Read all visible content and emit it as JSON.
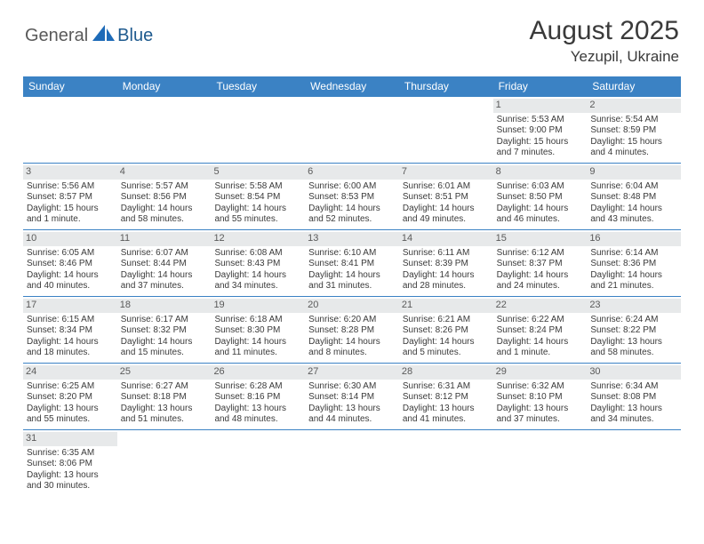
{
  "logo": {
    "general": "General",
    "blue": "Blue",
    "shape_color": "#1e6bb8"
  },
  "title": {
    "month": "August 2025",
    "location": "Yezupil, Ukraine"
  },
  "colors": {
    "header_bg": "#3b82c4",
    "daynum_bg": "#e7e9ea",
    "rule": "#3b82c4",
    "text": "#3a3a3a"
  },
  "day_names": [
    "Sunday",
    "Monday",
    "Tuesday",
    "Wednesday",
    "Thursday",
    "Friday",
    "Saturday"
  ],
  "weeks": [
    [
      null,
      null,
      null,
      null,
      null,
      {
        "n": "1",
        "sr": "5:53 AM",
        "ss": "9:00 PM",
        "dl": "15 hours and 7 minutes."
      },
      {
        "n": "2",
        "sr": "5:54 AM",
        "ss": "8:59 PM",
        "dl": "15 hours and 4 minutes."
      }
    ],
    [
      {
        "n": "3",
        "sr": "5:56 AM",
        "ss": "8:57 PM",
        "dl": "15 hours and 1 minute."
      },
      {
        "n": "4",
        "sr": "5:57 AM",
        "ss": "8:56 PM",
        "dl": "14 hours and 58 minutes."
      },
      {
        "n": "5",
        "sr": "5:58 AM",
        "ss": "8:54 PM",
        "dl": "14 hours and 55 minutes."
      },
      {
        "n": "6",
        "sr": "6:00 AM",
        "ss": "8:53 PM",
        "dl": "14 hours and 52 minutes."
      },
      {
        "n": "7",
        "sr": "6:01 AM",
        "ss": "8:51 PM",
        "dl": "14 hours and 49 minutes."
      },
      {
        "n": "8",
        "sr": "6:03 AM",
        "ss": "8:50 PM",
        "dl": "14 hours and 46 minutes."
      },
      {
        "n": "9",
        "sr": "6:04 AM",
        "ss": "8:48 PM",
        "dl": "14 hours and 43 minutes."
      }
    ],
    [
      {
        "n": "10",
        "sr": "6:05 AM",
        "ss": "8:46 PM",
        "dl": "14 hours and 40 minutes."
      },
      {
        "n": "11",
        "sr": "6:07 AM",
        "ss": "8:44 PM",
        "dl": "14 hours and 37 minutes."
      },
      {
        "n": "12",
        "sr": "6:08 AM",
        "ss": "8:43 PM",
        "dl": "14 hours and 34 minutes."
      },
      {
        "n": "13",
        "sr": "6:10 AM",
        "ss": "8:41 PM",
        "dl": "14 hours and 31 minutes."
      },
      {
        "n": "14",
        "sr": "6:11 AM",
        "ss": "8:39 PM",
        "dl": "14 hours and 28 minutes."
      },
      {
        "n": "15",
        "sr": "6:12 AM",
        "ss": "8:37 PM",
        "dl": "14 hours and 24 minutes."
      },
      {
        "n": "16",
        "sr": "6:14 AM",
        "ss": "8:36 PM",
        "dl": "14 hours and 21 minutes."
      }
    ],
    [
      {
        "n": "17",
        "sr": "6:15 AM",
        "ss": "8:34 PM",
        "dl": "14 hours and 18 minutes."
      },
      {
        "n": "18",
        "sr": "6:17 AM",
        "ss": "8:32 PM",
        "dl": "14 hours and 15 minutes."
      },
      {
        "n": "19",
        "sr": "6:18 AM",
        "ss": "8:30 PM",
        "dl": "14 hours and 11 minutes."
      },
      {
        "n": "20",
        "sr": "6:20 AM",
        "ss": "8:28 PM",
        "dl": "14 hours and 8 minutes."
      },
      {
        "n": "21",
        "sr": "6:21 AM",
        "ss": "8:26 PM",
        "dl": "14 hours and 5 minutes."
      },
      {
        "n": "22",
        "sr": "6:22 AM",
        "ss": "8:24 PM",
        "dl": "14 hours and 1 minute."
      },
      {
        "n": "23",
        "sr": "6:24 AM",
        "ss": "8:22 PM",
        "dl": "13 hours and 58 minutes."
      }
    ],
    [
      {
        "n": "24",
        "sr": "6:25 AM",
        "ss": "8:20 PM",
        "dl": "13 hours and 55 minutes."
      },
      {
        "n": "25",
        "sr": "6:27 AM",
        "ss": "8:18 PM",
        "dl": "13 hours and 51 minutes."
      },
      {
        "n": "26",
        "sr": "6:28 AM",
        "ss": "8:16 PM",
        "dl": "13 hours and 48 minutes."
      },
      {
        "n": "27",
        "sr": "6:30 AM",
        "ss": "8:14 PM",
        "dl": "13 hours and 44 minutes."
      },
      {
        "n": "28",
        "sr": "6:31 AM",
        "ss": "8:12 PM",
        "dl": "13 hours and 41 minutes."
      },
      {
        "n": "29",
        "sr": "6:32 AM",
        "ss": "8:10 PM",
        "dl": "13 hours and 37 minutes."
      },
      {
        "n": "30",
        "sr": "6:34 AM",
        "ss": "8:08 PM",
        "dl": "13 hours and 34 minutes."
      }
    ],
    [
      {
        "n": "31",
        "sr": "6:35 AM",
        "ss": "8:06 PM",
        "dl": "13 hours and 30 minutes."
      },
      null,
      null,
      null,
      null,
      null,
      null
    ]
  ],
  "labels": {
    "sunrise": "Sunrise: ",
    "sunset": "Sunset: ",
    "daylight": "Daylight: "
  }
}
